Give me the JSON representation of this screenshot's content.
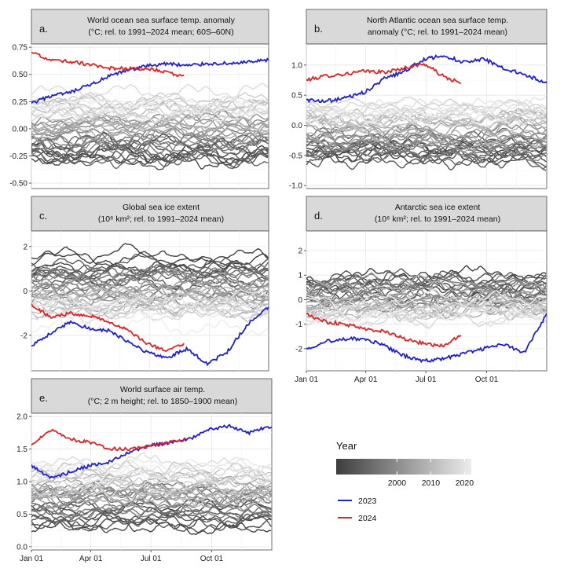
{
  "chart_data": [
    {
      "type": "line",
      "panel": "a.",
      "title_lines": [
        "World ocean sea surface temp. anomaly",
        "(°C; rel. to 1991–2024 mean; 60S–60N)"
      ],
      "ylim": [
        -0.55,
        0.78
      ],
      "y_ticks": [
        -0.5,
        -0.25,
        0.0,
        0.25,
        0.5,
        0.75
      ],
      "y_tick_labels": [
        "-0.50",
        "-0.25",
        "0.00",
        "0.25",
        "0.50",
        "0.75"
      ],
      "x_tick_labels": [],
      "series": [
        {
          "name": "2023",
          "color": "#1f1fd6",
          "x": [
            1,
            30,
            60,
            90,
            120,
            150,
            180,
            210,
            240,
            270,
            300,
            330,
            365
          ],
          "values": [
            0.23,
            0.3,
            0.33,
            0.4,
            0.48,
            0.54,
            0.58,
            0.6,
            0.58,
            0.6,
            0.6,
            0.61,
            0.63
          ]
        },
        {
          "name": "2024",
          "color": "#e02424",
          "x": [
            1,
            30,
            60,
            90,
            120,
            150,
            180,
            210,
            235
          ],
          "values": [
            0.7,
            0.63,
            0.62,
            0.59,
            0.56,
            0.55,
            0.55,
            0.52,
            0.48
          ]
        }
      ],
      "background_years": {
        "first": 1982,
        "last": 2022,
        "y_start": -0.27,
        "y_end": 0.3
      }
    },
    {
      "type": "line",
      "panel": "b.",
      "title_lines": [
        "North Atlantic ocean sea surface temp.",
        "anomaly (°C; rel. to 1991–2024 mean)"
      ],
      "ylim": [
        -1.05,
        1.35
      ],
      "y_ticks": [
        -1.0,
        -0.5,
        0.0,
        0.5,
        1.0
      ],
      "y_tick_labels": [
        "-1.0",
        "-0.5",
        "0.0",
        "0.5",
        "1.0"
      ],
      "x_tick_labels": [],
      "series": [
        {
          "name": "2023",
          "color": "#1f1fd6",
          "x": [
            1,
            30,
            60,
            90,
            120,
            150,
            180,
            210,
            240,
            270,
            300,
            330,
            365
          ],
          "values": [
            0.42,
            0.4,
            0.45,
            0.55,
            0.78,
            0.9,
            1.1,
            1.15,
            1.05,
            1.1,
            0.95,
            0.85,
            0.7
          ]
        },
        {
          "name": "2024",
          "color": "#e02424",
          "x": [
            1,
            30,
            60,
            90,
            120,
            150,
            180,
            210,
            235
          ],
          "values": [
            0.75,
            0.82,
            0.85,
            0.9,
            0.88,
            0.95,
            1.02,
            0.8,
            0.7
          ]
        }
      ],
      "background_years": {
        "first": 1982,
        "last": 2022,
        "y_start": -0.55,
        "y_end": 0.3
      }
    },
    {
      "type": "line",
      "panel": "c.",
      "title_lines": [
        "Global sea ice extent",
        "(10⁶ km²; rel. to 1991–2024 mean)"
      ],
      "ylim": [
        -3.6,
        2.7
      ],
      "y_ticks": [
        -2,
        0,
        2
      ],
      "y_tick_labels": [
        "-2",
        "0",
        "2"
      ],
      "x_tick_labels": [],
      "series": [
        {
          "name": "2023",
          "color": "#1f1fd6",
          "x": [
            1,
            30,
            60,
            90,
            120,
            150,
            180,
            210,
            240,
            270,
            300,
            330,
            365
          ],
          "values": [
            -2.5,
            -1.9,
            -1.4,
            -1.7,
            -1.8,
            -2.3,
            -2.8,
            -3.0,
            -2.6,
            -3.3,
            -2.8,
            -1.6,
            -0.7
          ]
        },
        {
          "name": "2024",
          "color": "#e02424",
          "x": [
            1,
            30,
            60,
            90,
            120,
            150,
            180,
            210,
            235
          ],
          "values": [
            -0.6,
            -1.2,
            -1.0,
            -1.1,
            -1.4,
            -1.8,
            -2.4,
            -2.7,
            -2.4
          ]
        }
      ],
      "background_years": {
        "first": 1982,
        "last": 2022,
        "y_start": 1.1,
        "y_end": -1.2
      }
    },
    {
      "type": "line",
      "panel": "d.",
      "title_lines": [
        "Antarctic sea ice extent",
        "(10⁶ km²; rel. to 1991–2024 mean)"
      ],
      "ylim": [
        -2.9,
        2.8
      ],
      "y_ticks": [
        -2,
        -1,
        0,
        1,
        2
      ],
      "y_tick_labels": [
        "-2",
        "-1",
        "0",
        "1",
        "2"
      ],
      "x_ticks": [
        1,
        91,
        182,
        274
      ],
      "x_tick_labels": [
        "Jan 01",
        "Apr 01",
        "Jul 01",
        "Oct 01"
      ],
      "series": [
        {
          "name": "2023",
          "color": "#1f1fd6",
          "x": [
            1,
            30,
            60,
            90,
            120,
            150,
            180,
            210,
            240,
            270,
            300,
            330,
            365
          ],
          "values": [
            -2.0,
            -1.7,
            -1.6,
            -1.6,
            -1.9,
            -2.3,
            -2.5,
            -2.4,
            -2.2,
            -2.0,
            -1.8,
            -2.2,
            -0.6
          ]
        },
        {
          "name": "2024",
          "color": "#e02424",
          "x": [
            1,
            30,
            60,
            90,
            120,
            150,
            180,
            210,
            235
          ],
          "values": [
            -0.6,
            -0.9,
            -1.0,
            -1.2,
            -1.3,
            -1.6,
            -1.8,
            -1.9,
            -1.4
          ]
        }
      ],
      "background_years": {
        "first": 1982,
        "last": 2022,
        "y_start": 0.6,
        "y_end": -0.4
      }
    },
    {
      "type": "line",
      "panel": "e.",
      "title_lines": [
        "World surface air temp.",
        "(°C; 2 m height; rel. to 1850–1900 mean)"
      ],
      "ylim": [
        -0.05,
        2.05
      ],
      "y_ticks": [
        0.0,
        0.5,
        1.0,
        1.5,
        2.0
      ],
      "y_tick_labels": [
        "0.0",
        "0.5",
        "1.0",
        "1.5",
        "2.0"
      ],
      "x_ticks": [
        1,
        91,
        182,
        274
      ],
      "x_tick_labels": [
        "Jan 01",
        "Apr 01",
        "Jul 01",
        "Oct 01"
      ],
      "series": [
        {
          "name": "2023",
          "color": "#1f1fd6",
          "x": [
            1,
            30,
            60,
            90,
            120,
            150,
            180,
            210,
            240,
            270,
            300,
            330,
            365
          ],
          "values": [
            1.25,
            1.05,
            1.15,
            1.25,
            1.3,
            1.45,
            1.55,
            1.6,
            1.65,
            1.8,
            1.85,
            1.75,
            1.85
          ]
        },
        {
          "name": "2024",
          "color": "#e02424",
          "x": [
            1,
            30,
            60,
            90,
            120,
            150,
            180,
            210,
            235
          ],
          "values": [
            1.55,
            1.8,
            1.65,
            1.6,
            1.5,
            1.5,
            1.55,
            1.6,
            1.65
          ]
        }
      ],
      "background_years": {
        "first": 1982,
        "last": 2022,
        "y_start": 0.45,
        "y_end": 1.2
      }
    }
  ],
  "legend": {
    "title": "Year",
    "colorbar_labels": [
      "2000",
      "2010",
      "2020"
    ],
    "colorbar_years": [
      2000,
      2010,
      2020
    ],
    "colorbar_range": [
      1982,
      2022
    ],
    "colorbar_colors": [
      "#3d3d3d",
      "#ededed"
    ],
    "items": [
      {
        "label": "2023",
        "color": "#1f1fd6"
      },
      {
        "label": "2024",
        "color": "#e02424"
      }
    ]
  }
}
